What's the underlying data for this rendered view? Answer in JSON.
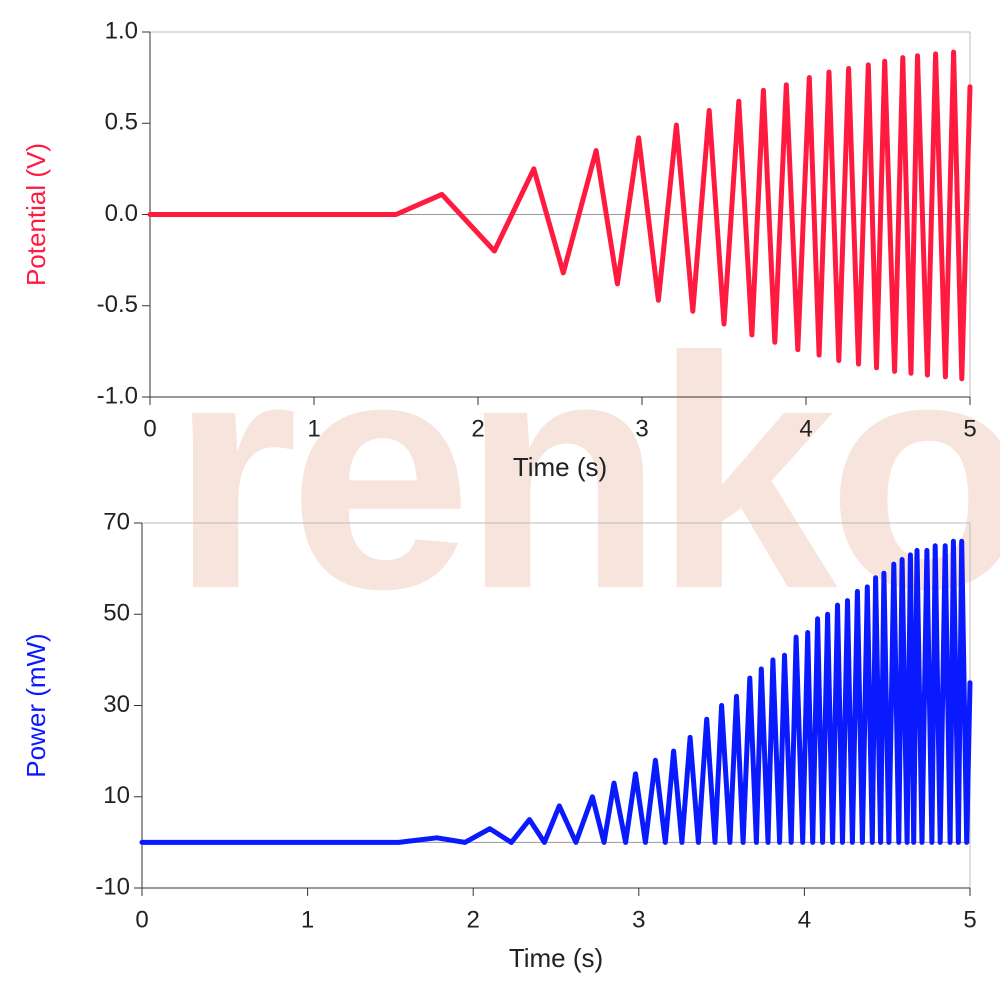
{
  "watermark": "renko",
  "chart_data": [
    {
      "type": "line",
      "xlabel": "Time (s)",
      "ylabel": "Potential (V)",
      "xlim": [
        0,
        5
      ],
      "ylim": [
        -1.0,
        1.0
      ],
      "xticks": [
        0,
        1,
        2,
        3,
        4,
        5
      ],
      "yticks": [
        {
          "value": 1,
          "label": "1.0"
        },
        {
          "value": 0.5,
          "label": "0.5"
        },
        {
          "value": 0,
          "label": "0.0"
        },
        {
          "value": -0.5,
          "label": "-0.5"
        },
        {
          "value": -1,
          "label": "-1.0"
        }
      ],
      "color": "#ff1a40",
      "x": [
        0,
        1.5,
        1.78,
        2.1,
        2.34,
        2.52,
        2.72,
        2.85,
        2.98,
        3.1,
        3.21,
        3.31,
        3.41,
        3.5,
        3.59,
        3.67,
        3.74,
        3.81,
        3.88,
        3.95,
        4.02,
        4.08,
        4.14,
        4.2,
        4.26,
        4.32,
        4.38,
        4.43,
        4.48,
        4.54,
        4.59,
        4.64,
        4.68,
        4.74,
        4.79,
        4.85,
        4.9,
        4.95,
        5.0
      ],
      "values": [
        0,
        0,
        0.11,
        -0.2,
        0.25,
        -0.32,
        0.35,
        -0.38,
        0.42,
        -0.47,
        0.49,
        -0.53,
        0.57,
        -0.6,
        0.62,
        -0.66,
        0.68,
        -0.7,
        0.71,
        -0.74,
        0.75,
        -0.77,
        0.78,
        -0.8,
        0.8,
        -0.82,
        0.82,
        -0.84,
        0.84,
        -0.86,
        0.86,
        -0.87,
        0.87,
        -0.88,
        0.88,
        -0.89,
        0.89,
        -0.9,
        0.7
      ]
    },
    {
      "type": "line",
      "xlabel": "Time (s)",
      "ylabel": "Power (mW)",
      "xlim": [
        0,
        5
      ],
      "ylim": [
        -10,
        70
      ],
      "xticks": [
        0,
        1,
        2,
        3,
        4,
        5
      ],
      "yticks": [
        70,
        50,
        30,
        10,
        -10
      ],
      "color": "#0a1aff",
      "x": [
        0,
        1.55,
        1.78,
        1.95,
        2.1,
        2.23,
        2.34,
        2.43,
        2.52,
        2.62,
        2.72,
        2.79,
        2.85,
        2.92,
        2.98,
        3.04,
        3.1,
        3.16,
        3.21,
        3.26,
        3.31,
        3.36,
        3.41,
        3.46,
        3.5,
        3.55,
        3.59,
        3.63,
        3.67,
        3.71,
        3.74,
        3.78,
        3.81,
        3.85,
        3.88,
        3.92,
        3.95,
        3.99,
        4.02,
        4.05,
        4.08,
        4.11,
        4.14,
        4.17,
        4.2,
        4.23,
        4.26,
        4.29,
        4.32,
        4.35,
        4.38,
        4.41,
        4.43,
        4.46,
        4.48,
        4.51,
        4.54,
        4.57,
        4.59,
        4.62,
        4.64,
        4.66,
        4.68,
        4.71,
        4.74,
        4.77,
        4.79,
        4.82,
        4.85,
        4.88,
        4.9,
        4.93,
        4.95,
        4.98,
        5.0
      ],
      "values": [
        0,
        0,
        1,
        0,
        3,
        0,
        5,
        0,
        8,
        0,
        10,
        0,
        13,
        0,
        15,
        0,
        18,
        0,
        20,
        0,
        23,
        0,
        27,
        0,
        30,
        0,
        32,
        0,
        36,
        0,
        38,
        0,
        40,
        0,
        41,
        0,
        45,
        0,
        46,
        0,
        49,
        0,
        50,
        0,
        52,
        0,
        53,
        0,
        55,
        0,
        56,
        0,
        58,
        0,
        59,
        0,
        61,
        0,
        62,
        0,
        63,
        0,
        64,
        0,
        64,
        0,
        65,
        0,
        65,
        0,
        66,
        0,
        66,
        0,
        35
      ]
    }
  ]
}
